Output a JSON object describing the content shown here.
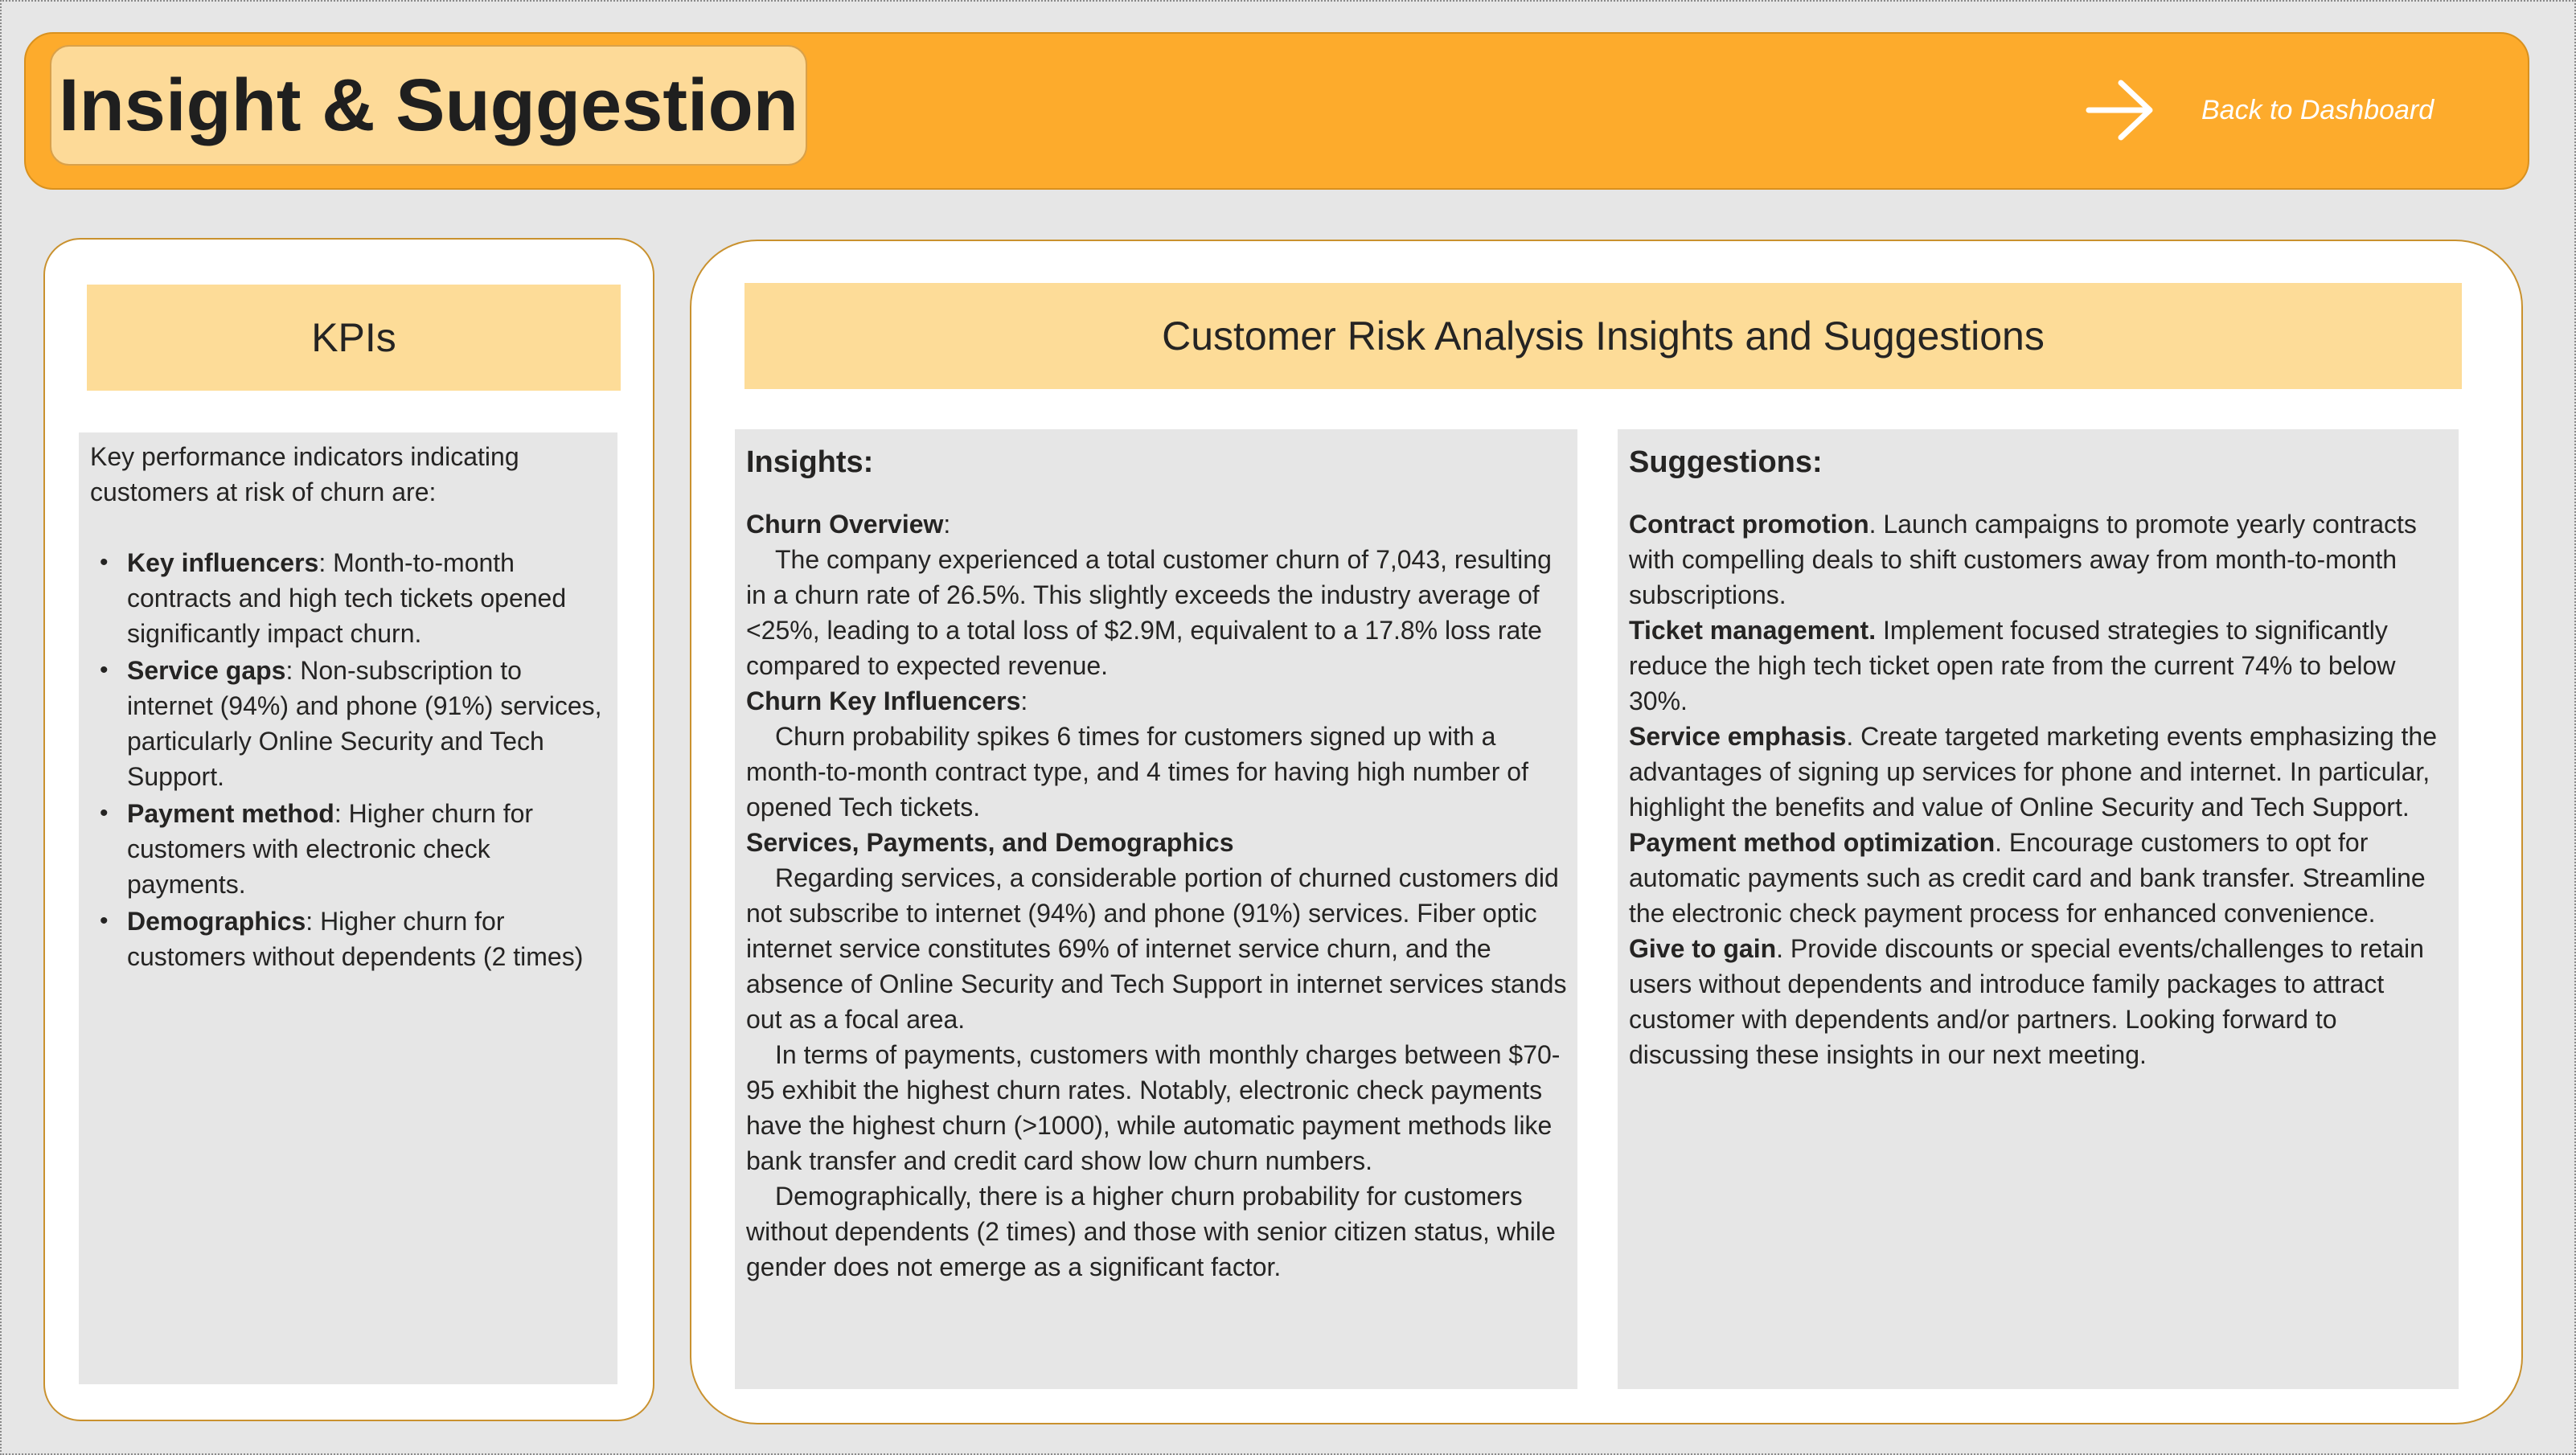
{
  "header": {
    "title": "Insight & Suggestion",
    "back_label": "Back to Dashboard",
    "back_icon": "arrow-right-icon",
    "colors": {
      "banner": "#fdab2c",
      "title_box": "#fdda98"
    }
  },
  "kpi_card": {
    "title": "KPIs",
    "intro": "Key performance indicators indicating customers at risk of churn are:",
    "items": [
      {
        "term": "Key influencers",
        "text": ": Month-to-month contracts and high tech tickets opened significantly impact churn."
      },
      {
        "term": "Service gaps",
        "text": ": Non-subscription to internet (94%) and phone (91%) services, particularly Online Security and Tech Support."
      },
      {
        "term": "Payment method",
        "text": ": Higher churn for customers with electronic check payments."
      },
      {
        "term": "Demographics",
        "text": ": Higher churn for customers without dependents (2 times)"
      }
    ]
  },
  "main_card": {
    "title": "Customer Risk Analysis Insights and Suggestions",
    "insights": {
      "heading": "Insights:",
      "churn_overview_term": "Churn Overview",
      "churn_overview_colon": ":",
      "churn_overview_text": "The company experienced a total customer churn of 7,043, resulting in a churn rate of 26.5%. This slightly exceeds the industry average of <25%, leading to a total loss of $2.9M, equivalent to a 17.8% loss rate compared to expected revenue.",
      "key_influencers_term": "Churn Key Influencers",
      "key_influencers_colon": ":",
      "key_influencers_text": "Churn probability spikes 6 times for customers signed up with a month-to-month contract type, and 4 times for having high number of opened Tech tickets.",
      "services_term": "Services, Payments, and Demographics",
      "services_text": "Regarding services, a considerable portion of churned customers did not subscribe to internet (94%) and phone (91%) services. Fiber optic internet service constitutes 69% of internet service churn, and the absence of Online Security and Tech Support in internet services stands out as a focal area.",
      "payments_text": "In terms of payments, customers with monthly charges between $70-95 exhibit the highest churn rates. Notably, electronic check payments have the highest churn (>1000), while automatic payment methods like bank transfer and credit card show low churn numbers.",
      "demographics_text": "Demographically, there is a higher churn probability for customers without dependents (2 times) and those with senior citizen status, while gender does not emerge as a significant factor."
    },
    "suggestions": {
      "heading": "Suggestions:",
      "items": [
        {
          "term": "Contract promotion",
          "text": ". Launch campaigns to promote yearly contracts with compelling deals to shift customers away from month-to-month subscriptions."
        },
        {
          "term": "Ticket management.",
          "text": " Implement focused strategies to significantly reduce the high tech ticket open rate from the current 74% to below 30%."
        },
        {
          "term": "Service emphasis",
          "text": ". Create targeted marketing events emphasizing the advantages of signing up services for phone and internet. In particular, highlight the benefits and value of Online Security and Tech Support."
        },
        {
          "term": "Payment method optimization",
          "text": ". Encourage customers to opt for automatic payments such as credit card and bank transfer. Streamline the electronic check payment process for enhanced convenience."
        },
        {
          "term": "Give to gain",
          "text": ". Provide discounts or special events/challenges to retain users without dependents and introduce family packages to attract customer with dependents and/or partners. Looking forward to discussing these insights in our next meeting."
        }
      ]
    }
  }
}
